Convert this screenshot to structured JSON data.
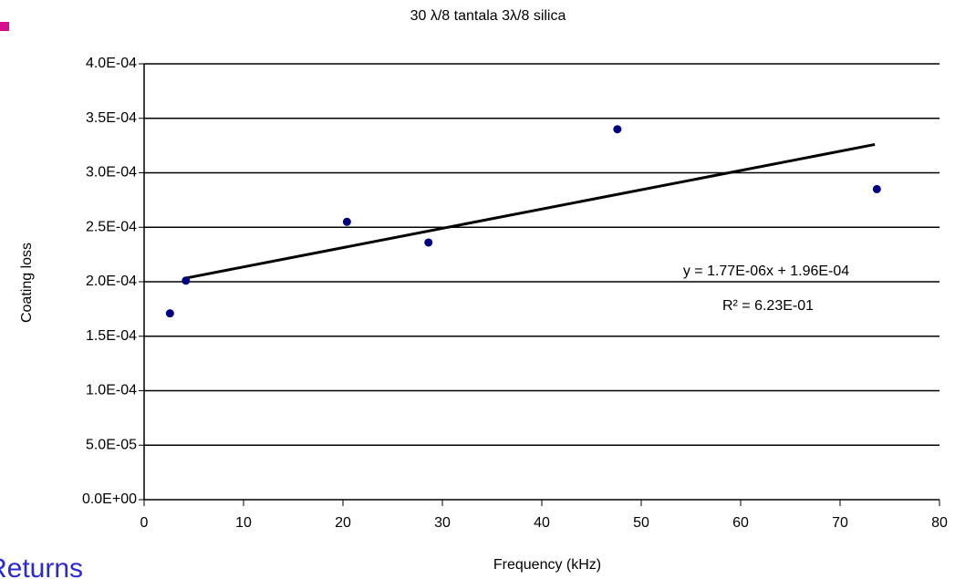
{
  "chart_data": {
    "type": "scatter",
    "title": "30 λ/8 tantala 3λ/8 silica",
    "x_label": "Frequency (kHz)",
    "y_label": "Coating loss",
    "x": [
      2.6,
      4.2,
      20.4,
      28.6,
      47.6,
      73.7
    ],
    "series": [
      {
        "name": "Coating loss",
        "color": "#000080",
        "values": [
          0.000171,
          0.000201,
          0.000255,
          0.000236,
          0.00034,
          0.000285
        ]
      }
    ],
    "trendline": {
      "x": [
        4,
        73.5
      ],
      "values": [
        0.000203,
        0.000326
      ],
      "color": "#000000"
    },
    "annotations": [
      "y = 1.77E-06x + 1.96E-04",
      "R² = 6.23E-01"
    ],
    "xlim": [
      0,
      80
    ],
    "xticks": [
      0,
      10,
      20,
      30,
      40,
      50,
      60,
      70,
      80
    ],
    "ylim": [
      0,
      0.0004
    ],
    "yticks": [
      {
        "value": 0,
        "label": "0.0E+00"
      },
      {
        "value": 5e-05,
        "label": "5.0E-05"
      },
      {
        "value": 0.0001,
        "label": "1.0E-04"
      },
      {
        "value": 0.00015,
        "label": "1.5E-04"
      },
      {
        "value": 0.0002,
        "label": "2.0E-04"
      },
      {
        "value": 0.00025,
        "label": "2.5E-04"
      },
      {
        "value": 0.0003,
        "label": "3.0E-04"
      },
      {
        "value": 0.00035,
        "label": "3.5E-04"
      },
      {
        "value": 0.0004,
        "label": "4.0E-04"
      }
    ],
    "grid": true,
    "fragment": "Returns"
  }
}
